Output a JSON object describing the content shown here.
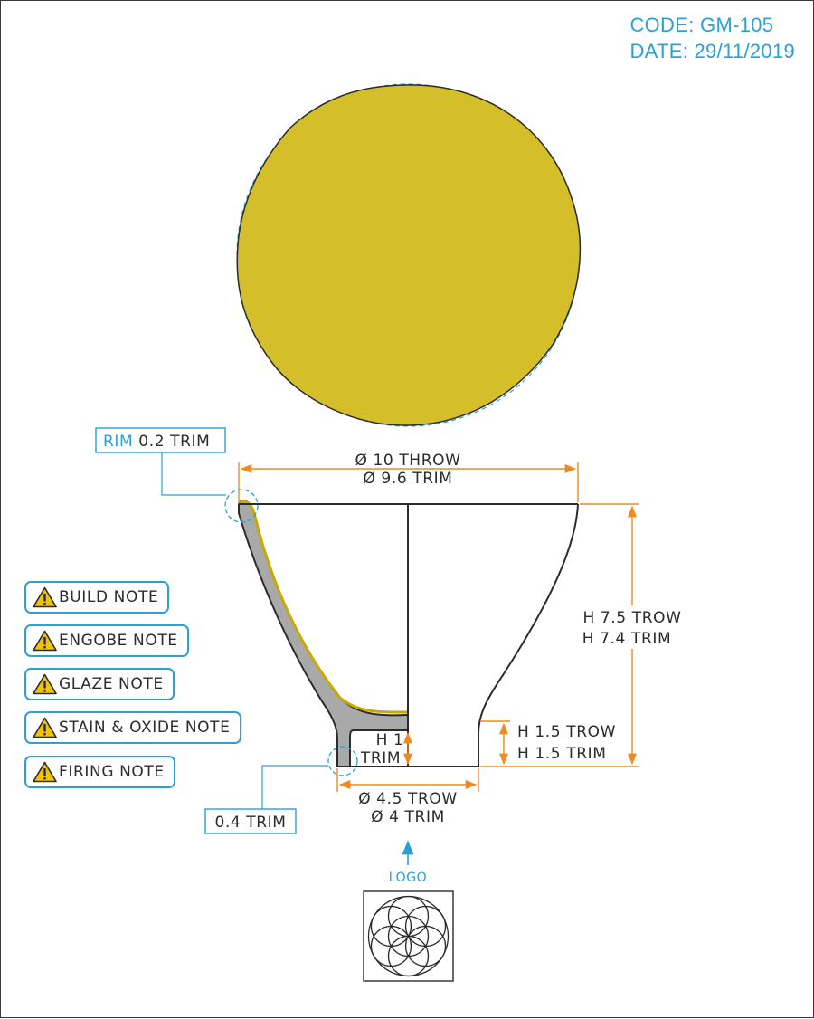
{
  "header": {
    "code": "CODE: GM-105",
    "date": "DATE: 29/11/2019"
  },
  "dimensions": {
    "rim_callout_prefix": "RIM",
    "rim_callout_value": "0.2 TRIM",
    "top_diameter_throw": "Ø 10 THROW",
    "top_diameter_trim": "Ø 9.6 TRIM",
    "height_throw": "H 7.5 TROW",
    "height_trim": "H 7.4 TRIM",
    "foot_height_throw": "H 1.5 TROW",
    "foot_height_trim": "H 1.5 TRIM",
    "inner_foot_height_1": "H 1",
    "inner_foot_height_2": "TRIM",
    "foot_diameter_throw": "Ø 4.5 TROW",
    "foot_diameter_trim": "Ø 4 TRIM",
    "foot_wall_callout": "0.4 TRIM",
    "logo_label": "LOGO"
  },
  "notes": [
    {
      "label": "BUILD NOTE"
    },
    {
      "label": "ENGOBE NOTE"
    },
    {
      "label": "GLAZE NOTE"
    },
    {
      "label": "STAIN & OXIDE NOTE"
    },
    {
      "label": "FIRING NOTE"
    }
  ],
  "colors": {
    "glaze": "#d4bf2b",
    "dimension_orange": "#ee8a1e",
    "callout_blue": "#2aa0d6",
    "section_gray": "#a9a9a9",
    "outline": "#2b2b2b"
  },
  "icons": {
    "note_icon": "warning-triangle-icon",
    "logo_icon": "seed-of-life-icon"
  }
}
